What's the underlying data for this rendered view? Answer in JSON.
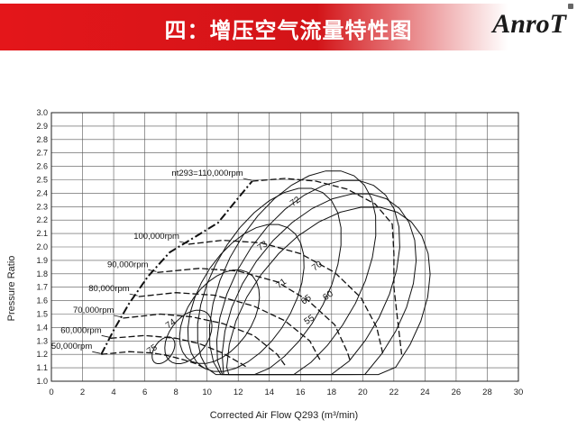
{
  "header": {
    "title": "四：增压空气流量特性图",
    "logo": "AnroT",
    "accent_color": "#e4161a"
  },
  "chart_data": {
    "type": "line",
    "title": "",
    "xlabel": "Corrected Air Flow Q293 (m³/min)",
    "ylabel": "Pressure Ratio",
    "xlim": [
      0,
      30
    ],
    "ylim": [
      1.0,
      3.0
    ],
    "xticks": [
      "0",
      "2",
      "4",
      "6",
      "8",
      "10",
      "12",
      "14",
      "16",
      "18",
      "20",
      "22",
      "24",
      "26",
      "28",
      "30"
    ],
    "yticks": [
      "1.0",
      "1.1",
      "1.2",
      "1.3",
      "1.4",
      "1.5",
      "1.6",
      "1.7",
      "1.8",
      "1.9",
      "2.0",
      "2.1",
      "2.2",
      "2.3",
      "2.4",
      "2.5",
      "2.6",
      "2.7",
      "2.8",
      "2.9",
      "3.0"
    ],
    "grid": true,
    "surge_line": [
      [
        3.2,
        1.2
      ],
      [
        4.0,
        1.38
      ],
      [
        5.0,
        1.58
      ],
      [
        6.2,
        1.78
      ],
      [
        7.6,
        1.96
      ],
      [
        9.3,
        2.08
      ],
      [
        10.7,
        2.18
      ],
      [
        11.9,
        2.35
      ],
      [
        12.9,
        2.49
      ]
    ],
    "speed_lines": [
      {
        "label": "50,000rpm",
        "points": [
          [
            3.2,
            1.2
          ],
          [
            5.0,
            1.22
          ],
          [
            6.5,
            1.21
          ],
          [
            7.5,
            1.19
          ],
          [
            8.5,
            1.16
          ],
          [
            9.3,
            1.13
          ],
          [
            9.8,
            1.1
          ]
        ]
      },
      {
        "label": "60,000rpm",
        "points": [
          [
            3.8,
            1.32
          ],
          [
            6.0,
            1.34
          ],
          [
            8.0,
            1.32
          ],
          [
            9.5,
            1.28
          ],
          [
            11.0,
            1.21
          ],
          [
            12.2,
            1.13
          ],
          [
            12.6,
            1.1
          ]
        ]
      },
      {
        "label": "70,000rpm",
        "points": [
          [
            4.6,
            1.47
          ],
          [
            7.0,
            1.5
          ],
          [
            9.0,
            1.48
          ],
          [
            11.0,
            1.43
          ],
          [
            13.0,
            1.34
          ],
          [
            14.5,
            1.2
          ],
          [
            15.0,
            1.12
          ]
        ]
      },
      {
        "label": "80,000rpm",
        "points": [
          [
            5.6,
            1.63
          ],
          [
            8.0,
            1.66
          ],
          [
            10.5,
            1.64
          ],
          [
            13.0,
            1.56
          ],
          [
            15.0,
            1.45
          ],
          [
            16.6,
            1.3
          ],
          [
            17.3,
            1.15
          ]
        ]
      },
      {
        "label": "90,000rpm",
        "points": [
          [
            6.8,
            1.81
          ],
          [
            9.5,
            1.84
          ],
          [
            12.0,
            1.82
          ],
          [
            14.5,
            1.74
          ],
          [
            16.5,
            1.6
          ],
          [
            18.2,
            1.42
          ],
          [
            19.0,
            1.22
          ],
          [
            19.2,
            1.15
          ]
        ]
      },
      {
        "label": "100,000rpm",
        "points": [
          [
            8.8,
            2.02
          ],
          [
            11.0,
            2.05
          ],
          [
            13.5,
            2.03
          ],
          [
            16.0,
            1.95
          ],
          [
            18.2,
            1.81
          ],
          [
            19.9,
            1.62
          ],
          [
            20.9,
            1.4
          ],
          [
            21.3,
            1.2
          ]
        ]
      },
      {
        "label": "nt293=110,000rpm",
        "points": [
          [
            12.9,
            2.49
          ],
          [
            15.0,
            2.51
          ],
          [
            17.0,
            2.49
          ],
          [
            19.0,
            2.43
          ],
          [
            20.8,
            2.32
          ],
          [
            21.9,
            2.17
          ],
          [
            22.0,
            1.95
          ],
          [
            22.0,
            1.7
          ],
          [
            22.3,
            1.4
          ],
          [
            22.5,
            1.2
          ]
        ]
      }
    ],
    "efficiency_labels": [
      "75",
      "74",
      "73",
      "72",
      "71",
      "70",
      "65",
      "60",
      "55"
    ]
  }
}
